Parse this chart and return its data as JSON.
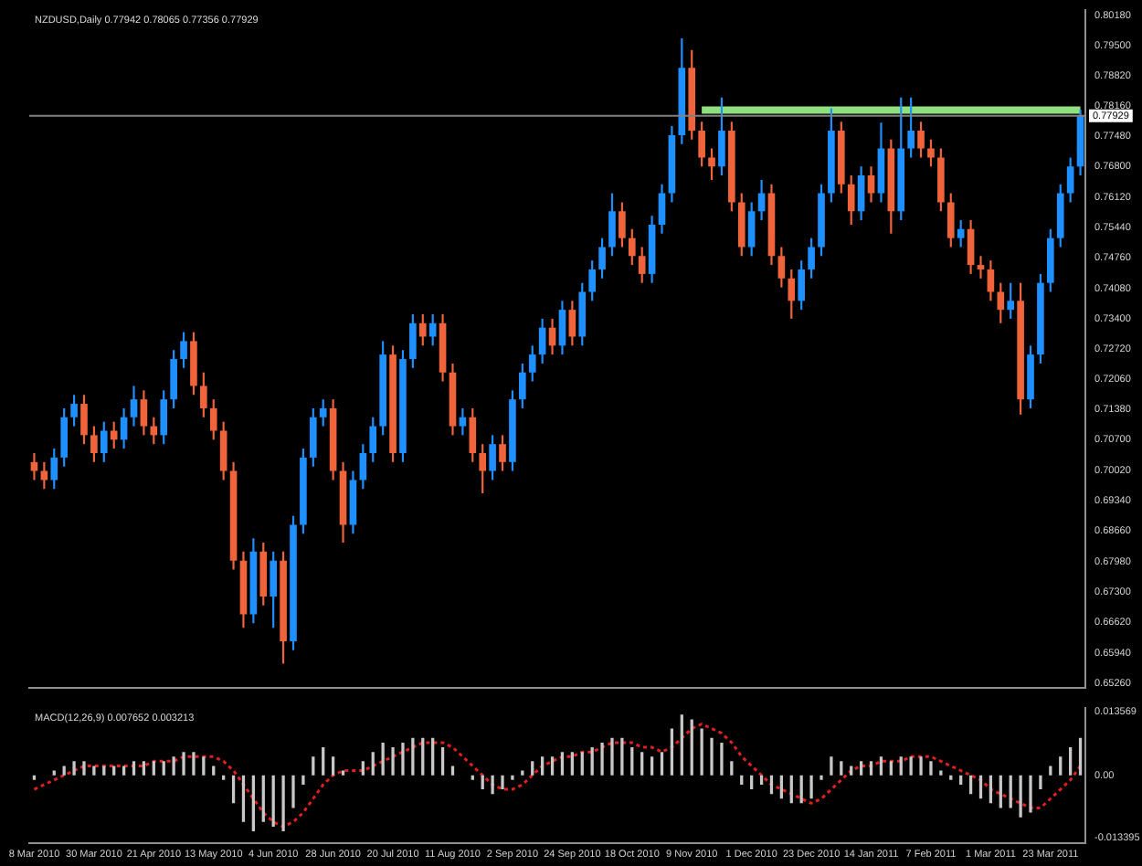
{
  "chart_data": [
    {
      "type": "candlestick",
      "title": "NZDUSD,Daily 0.77942 0.78065 0.77356 0.77929",
      "ohlc": [
        [
          0.702,
          0.704,
          0.698,
          0.7
        ],
        [
          0.7,
          0.702,
          0.696,
          0.698
        ],
        [
          0.698,
          0.705,
          0.696,
          0.703
        ],
        [
          0.703,
          0.714,
          0.701,
          0.712
        ],
        [
          0.712,
          0.717,
          0.71,
          0.715
        ],
        [
          0.715,
          0.717,
          0.706,
          0.708
        ],
        [
          0.708,
          0.71,
          0.702,
          0.704
        ],
        [
          0.704,
          0.711,
          0.702,
          0.709
        ],
        [
          0.709,
          0.711,
          0.705,
          0.707
        ],
        [
          0.707,
          0.714,
          0.705,
          0.712
        ],
        [
          0.712,
          0.719,
          0.71,
          0.716
        ],
        [
          0.716,
          0.718,
          0.708,
          0.71
        ],
        [
          0.71,
          0.712,
          0.706,
          0.708
        ],
        [
          0.708,
          0.718,
          0.706,
          0.716
        ],
        [
          0.716,
          0.727,
          0.714,
          0.725
        ],
        [
          0.725,
          0.731,
          0.723,
          0.729
        ],
        [
          0.729,
          0.731,
          0.717,
          0.719
        ],
        [
          0.719,
          0.722,
          0.712,
          0.714
        ],
        [
          0.714,
          0.716,
          0.707,
          0.709
        ],
        [
          0.709,
          0.711,
          0.698,
          0.7
        ],
        [
          0.7,
          0.702,
          0.678,
          0.68
        ],
        [
          0.68,
          0.682,
          0.665,
          0.668
        ],
        [
          0.668,
          0.685,
          0.666,
          0.682
        ],
        [
          0.682,
          0.684,
          0.67,
          0.672
        ],
        [
          0.672,
          0.682,
          0.665,
          0.68
        ],
        [
          0.68,
          0.682,
          0.657,
          0.662
        ],
        [
          0.662,
          0.69,
          0.66,
          0.688
        ],
        [
          0.688,
          0.705,
          0.686,
          0.703
        ],
        [
          0.703,
          0.714,
          0.701,
          0.712
        ],
        [
          0.712,
          0.716,
          0.71,
          0.714
        ],
        [
          0.714,
          0.716,
          0.698,
          0.7
        ],
        [
          0.7,
          0.702,
          0.684,
          0.688
        ],
        [
          0.688,
          0.7,
          0.686,
          0.698
        ],
        [
          0.698,
          0.706,
          0.696,
          0.704
        ],
        [
          0.704,
          0.712,
          0.702,
          0.71
        ],
        [
          0.71,
          0.729,
          0.708,
          0.726
        ],
        [
          0.726,
          0.728,
          0.702,
          0.704
        ],
        [
          0.704,
          0.727,
          0.702,
          0.725
        ],
        [
          0.725,
          0.735,
          0.723,
          0.733
        ],
        [
          0.733,
          0.735,
          0.728,
          0.73
        ],
        [
          0.73,
          0.735,
          0.728,
          0.733
        ],
        [
          0.733,
          0.735,
          0.72,
          0.722
        ],
        [
          0.722,
          0.724,
          0.708,
          0.71
        ],
        [
          0.71,
          0.714,
          0.708,
          0.712
        ],
        [
          0.712,
          0.714,
          0.702,
          0.704
        ],
        [
          0.704,
          0.706,
          0.695,
          0.7
        ],
        [
          0.7,
          0.708,
          0.698,
          0.706
        ],
        [
          0.706,
          0.708,
          0.7,
          0.702
        ],
        [
          0.702,
          0.718,
          0.7,
          0.716
        ],
        [
          0.716,
          0.724,
          0.714,
          0.722
        ],
        [
          0.722,
          0.728,
          0.72,
          0.726
        ],
        [
          0.726,
          0.734,
          0.724,
          0.732
        ],
        [
          0.732,
          0.734,
          0.726,
          0.728
        ],
        [
          0.728,
          0.738,
          0.726,
          0.736
        ],
        [
          0.736,
          0.738,
          0.728,
          0.73
        ],
        [
          0.73,
          0.742,
          0.728,
          0.74
        ],
        [
          0.74,
          0.747,
          0.738,
          0.745
        ],
        [
          0.745,
          0.752,
          0.743,
          0.75
        ],
        [
          0.75,
          0.762,
          0.748,
          0.758
        ],
        [
          0.758,
          0.76,
          0.75,
          0.752
        ],
        [
          0.752,
          0.754,
          0.746,
          0.748
        ],
        [
          0.748,
          0.75,
          0.742,
          0.744
        ],
        [
          0.744,
          0.757,
          0.742,
          0.755
        ],
        [
          0.755,
          0.764,
          0.753,
          0.762
        ],
        [
          0.762,
          0.777,
          0.76,
          0.775
        ],
        [
          0.775,
          0.7966,
          0.773,
          0.79
        ],
        [
          0.79,
          0.794,
          0.774,
          0.776
        ],
        [
          0.776,
          0.778,
          0.768,
          0.77
        ],
        [
          0.77,
          0.772,
          0.765,
          0.768
        ],
        [
          0.768,
          0.7834,
          0.766,
          0.776
        ],
        [
          0.776,
          0.778,
          0.758,
          0.76
        ],
        [
          0.76,
          0.762,
          0.748,
          0.75
        ],
        [
          0.75,
          0.76,
          0.748,
          0.758
        ],
        [
          0.758,
          0.765,
          0.756,
          0.762
        ],
        [
          0.762,
          0.764,
          0.746,
          0.748
        ],
        [
          0.748,
          0.75,
          0.741,
          0.743
        ],
        [
          0.743,
          0.745,
          0.734,
          0.738
        ],
        [
          0.738,
          0.747,
          0.736,
          0.745
        ],
        [
          0.745,
          0.752,
          0.743,
          0.75
        ],
        [
          0.75,
          0.764,
          0.748,
          0.762
        ],
        [
          0.762,
          0.781,
          0.76,
          0.776
        ],
        [
          0.776,
          0.778,
          0.762,
          0.764
        ],
        [
          0.764,
          0.766,
          0.755,
          0.758
        ],
        [
          0.758,
          0.768,
          0.756,
          0.766
        ],
        [
          0.766,
          0.768,
          0.76,
          0.762
        ],
        [
          0.762,
          0.7778,
          0.76,
          0.772
        ],
        [
          0.772,
          0.774,
          0.753,
          0.758
        ],
        [
          0.758,
          0.7834,
          0.756,
          0.772
        ],
        [
          0.772,
          0.7834,
          0.77,
          0.776
        ],
        [
          0.776,
          0.778,
          0.77,
          0.772
        ],
        [
          0.772,
          0.774,
          0.768,
          0.77
        ],
        [
          0.77,
          0.772,
          0.758,
          0.76
        ],
        [
          0.76,
          0.762,
          0.75,
          0.752
        ],
        [
          0.752,
          0.756,
          0.75,
          0.754
        ],
        [
          0.754,
          0.756,
          0.744,
          0.746
        ],
        [
          0.746,
          0.748,
          0.743,
          0.745
        ],
        [
          0.745,
          0.747,
          0.738,
          0.74
        ],
        [
          0.74,
          0.742,
          0.733,
          0.736
        ],
        [
          0.736,
          0.742,
          0.734,
          0.738
        ],
        [
          0.738,
          0.742,
          0.7126,
          0.716
        ],
        [
          0.716,
          0.728,
          0.714,
          0.726
        ],
        [
          0.726,
          0.744,
          0.724,
          0.742
        ],
        [
          0.742,
          0.754,
          0.74,
          0.752
        ],
        [
          0.752,
          0.764,
          0.75,
          0.762
        ],
        [
          0.762,
          0.77,
          0.76,
          0.768
        ],
        [
          0.768,
          0.78065,
          0.766,
          0.77929
        ]
      ],
      "colors": [
        "#f0643c",
        "#f0643c",
        "#1e90ff",
        "#1e90ff",
        "#1e90ff",
        "#f0643c",
        "#f0643c",
        "#1e90ff",
        "#f0643c",
        "#1e90ff",
        "#1e90ff",
        "#f0643c",
        "#f0643c",
        "#1e90ff",
        "#1e90ff",
        "#1e90ff",
        "#f0643c",
        "#f0643c",
        "#f0643c",
        "#f0643c",
        "#f0643c",
        "#f0643c",
        "#1e90ff",
        "#f0643c",
        "#1e90ff",
        "#f0643c",
        "#1e90ff",
        "#1e90ff",
        "#1e90ff",
        "#1e90ff",
        "#f0643c",
        "#f0643c",
        "#1e90ff",
        "#1e90ff",
        "#1e90ff",
        "#1e90ff",
        "#f0643c",
        "#1e90ff",
        "#1e90ff",
        "#f0643c",
        "#1e90ff",
        "#f0643c",
        "#f0643c",
        "#1e90ff",
        "#f0643c",
        "#f0643c",
        "#1e90ff",
        "#f0643c",
        "#1e90ff",
        "#1e90ff",
        "#1e90ff",
        "#1e90ff",
        "#f0643c",
        "#1e90ff",
        "#f0643c",
        "#1e90ff",
        "#1e90ff",
        "#1e90ff",
        "#1e90ff",
        "#f0643c",
        "#f0643c",
        "#f0643c",
        "#1e90ff",
        "#1e90ff",
        "#1e90ff",
        "#1e90ff",
        "#f0643c",
        "#f0643c",
        "#f0643c",
        "#1e90ff",
        "#f0643c",
        "#f0643c",
        "#1e90ff",
        "#1e90ff",
        "#f0643c",
        "#f0643c",
        "#f0643c",
        "#1e90ff",
        "#1e90ff",
        "#1e90ff",
        "#1e90ff",
        "#f0643c",
        "#f0643c",
        "#1e90ff",
        "#f0643c",
        "#1e90ff",
        "#f0643c",
        "#1e90ff",
        "#1e90ff",
        "#f0643c",
        "#f0643c",
        "#f0643c",
        "#f0643c",
        "#1e90ff",
        "#f0643c",
        "#f0643c",
        "#f0643c",
        "#f0643c",
        "#1e90ff",
        "#f0643c",
        "#1e90ff",
        "#1e90ff",
        "#1e90ff",
        "#1e90ff",
        "#1e90ff",
        "#1e90ff"
      ],
      "series": [
        {
          "type": "line",
          "color": "#90e080",
          "values": [
            null,
            null,
            null,
            null,
            null,
            null,
            null,
            null,
            null,
            null,
            null,
            null,
            null,
            null,
            null,
            null,
            null,
            null,
            null,
            null,
            null,
            null,
            null,
            null,
            null,
            null,
            null,
            null,
            null,
            null,
            null,
            null,
            null,
            null,
            null,
            null,
            null,
            null,
            null,
            null,
            null,
            null,
            null,
            null,
            null,
            null,
            null,
            null,
            null,
            null,
            null,
            null,
            null,
            null,
            null,
            null,
            null,
            null,
            null,
            null,
            null,
            null,
            null,
            null,
            null,
            null,
            null,
            0.7806,
            0.7806,
            0.7806,
            0.7806,
            0.7806,
            0.7806,
            0.7806,
            0.7806,
            0.7806,
            0.7806,
            0.7806,
            0.7806,
            0.7806,
            0.7806,
            0.7806,
            0.7806,
            0.7806,
            0.7806,
            0.7806,
            0.7806,
            0.7806,
            0.7806,
            0.7806,
            0.7806,
            0.7806,
            0.7806,
            0.7806,
            0.7806,
            0.7806,
            0.7806,
            0.7806,
            0.7806,
            0.7806,
            0.7806,
            0.7806,
            0.7806,
            0.7806,
            0.7806,
            0.7806
          ]
        }
      ],
      "ref_lines": [
        {
          "axis": "y",
          "value": 0.77929,
          "label": "0.77929",
          "color": "#808080"
        }
      ],
      "ylim": [
        0.6515,
        0.803
      ],
      "yticks": [
        {
          "value": 0.8018,
          "label": "0.80180"
        },
        {
          "value": 0.795,
          "label": "0.79500"
        },
        {
          "value": 0.7882,
          "label": "0.78820"
        },
        {
          "value": 0.7816,
          "label": "0.78160"
        },
        {
          "value": 0.7748,
          "label": "0.77480"
        },
        {
          "value": 0.768,
          "label": "0.76800"
        },
        {
          "value": 0.7612,
          "label": "0.76120"
        },
        {
          "value": 0.7544,
          "label": "0.75440"
        },
        {
          "value": 0.7476,
          "label": "0.74760"
        },
        {
          "value": 0.7408,
          "label": "0.74080"
        },
        {
          "value": 0.734,
          "label": "0.73400"
        },
        {
          "value": 0.7272,
          "label": "0.72720"
        },
        {
          "value": 0.7206,
          "label": "0.72060"
        },
        {
          "value": 0.7138,
          "label": "0.71380"
        },
        {
          "value": 0.707,
          "label": "0.70700"
        },
        {
          "value": 0.7002,
          "label": "0.70020"
        },
        {
          "value": 0.6934,
          "label": "0.69340"
        },
        {
          "value": 0.6866,
          "label": "0.68660"
        },
        {
          "value": 0.6798,
          "label": "0.67980"
        },
        {
          "value": 0.673,
          "label": "0.67300"
        },
        {
          "value": 0.6662,
          "label": "0.66620"
        },
        {
          "value": 0.6594,
          "label": "0.65940"
        },
        {
          "value": 0.6526,
          "label": "0.65260"
        }
      ],
      "tick_labels": "y"
    },
    {
      "type": "bar",
      "title": "MACD(12,26,9) 0.007652 0.003213",
      "categories": [
        "8 Mar 2010",
        null,
        null,
        null,
        null,
        null,
        "30 Mar 2010",
        null,
        null,
        null,
        null,
        null,
        "21 Apr 2010",
        null,
        null,
        null,
        null,
        null,
        "13 May 2010",
        null,
        null,
        null,
        null,
        null,
        "4 Jun 2010",
        null,
        null,
        null,
        null,
        null,
        "28 Jun 2010",
        null,
        null,
        null,
        null,
        null,
        "20 Jul 2010",
        null,
        null,
        null,
        null,
        null,
        "11 Aug 2010",
        null,
        null,
        null,
        null,
        null,
        "2 Sep 2010",
        null,
        null,
        null,
        null,
        null,
        "24 Sep 2010",
        null,
        null,
        null,
        null,
        null,
        "18 Oct 2010",
        null,
        null,
        null,
        null,
        null,
        "9 Nov 2010",
        null,
        null,
        null,
        null,
        null,
        "1 Dec 2010",
        null,
        null,
        null,
        null,
        null,
        "23 Dec 2010",
        null,
        null,
        null,
        null,
        null,
        "14 Jan 2011",
        null,
        null,
        null,
        null,
        null,
        "7 Feb 2011",
        null,
        null,
        null,
        null,
        null,
        "1 Mar 2011",
        null,
        null,
        null,
        null,
        null,
        "23 Mar 2011",
        null,
        null,
        null
      ],
      "series": [
        {
          "color": "#c8c8c8",
          "values": [
            -0.001,
            0,
            0.001,
            0.002,
            0.003,
            0.003,
            0.002,
            0.002,
            0.002,
            0.002,
            0.003,
            0.003,
            0.003,
            0.003,
            0.004,
            0.005,
            0.005,
            0.004,
            0.002,
            -0.001,
            -0.006,
            -0.01,
            -0.012,
            -0.01,
            -0.011,
            -0.012,
            -0.007,
            -0.002,
            0.004,
            0.006,
            0.004,
            0.001,
            0,
            0.003,
            0.005,
            0.007,
            0.006,
            0.007,
            0.008,
            0.008,
            0.008,
            0.006,
            0.002,
            0,
            -0.001,
            -0.003,
            -0.004,
            -0.003,
            -0.001,
            0.001,
            0.003,
            0.004,
            0.004,
            0.005,
            0.005,
            0.005,
            0.006,
            0.007,
            0.008,
            0.008,
            0.006,
            0.005,
            0.004,
            0.005,
            0.01,
            0.013,
            0.012,
            0.01,
            0.008,
            0.007,
            0.003,
            -0.002,
            -0.003,
            -0.002,
            -0.004,
            -0.005,
            -0.006,
            -0.006,
            -0.005,
            -0.001,
            0.004,
            0.003,
            0.002,
            0.003,
            0.003,
            0.004,
            0.003,
            0.004,
            0.004,
            0.004,
            0.003,
            0.001,
            -0.001,
            -0.002,
            -0.004,
            -0.005,
            -0.006,
            -0.007,
            -0.007,
            -0.009,
            -0.008,
            -0.003,
            0.002,
            0.004,
            0.006,
            0.008
          ]
        },
        {
          "type": "line",
          "color": "#e02020",
          "line_style": "dotted",
          "values": [
            -0.003,
            -0.002,
            -0.001,
            0,
            0.001,
            0.002,
            0.002,
            0.002,
            0.002,
            0.002,
            0.002,
            0.002,
            0.003,
            0.003,
            0.003,
            0.004,
            0.004,
            0.004,
            0.004,
            0.003,
            0.001,
            -0.002,
            -0.005,
            -0.008,
            -0.01,
            -0.011,
            -0.01,
            -0.008,
            -0.005,
            -0.002,
            0,
            0.001,
            0.001,
            0.001,
            0.002,
            0.003,
            0.004,
            0.005,
            0.006,
            0.007,
            0.007,
            0.007,
            0.006,
            0.004,
            0.002,
            0,
            -0.002,
            -0.003,
            -0.003,
            -0.002,
            0,
            0.002,
            0.003,
            0.004,
            0.004,
            0.005,
            0.005,
            0.006,
            0.007,
            0.007,
            0.007,
            0.006,
            0.006,
            0.005,
            0.006,
            0.008,
            0.01,
            0.011,
            0.01,
            0.009,
            0.007,
            0.004,
            0.002,
            0,
            -0.002,
            -0.003,
            -0.004,
            -0.005,
            -0.006,
            -0.005,
            -0.003,
            -0.001,
            0.001,
            0.002,
            0.002,
            0.003,
            0.003,
            0.003,
            0.004,
            0.004,
            0.004,
            0.003,
            0.002,
            0.001,
            0,
            -0.001,
            -0.003,
            -0.004,
            -0.005,
            -0.006,
            -0.007,
            -0.007,
            -0.005,
            -0.003,
            -0.001,
            0.002
          ]
        }
      ],
      "ylim": [
        -0.0145,
        0.0145
      ],
      "yticks": [
        0.013569,
        {
          "value": 0,
          "label": "0.00"
        },
        -0.013395
      ]
    }
  ]
}
